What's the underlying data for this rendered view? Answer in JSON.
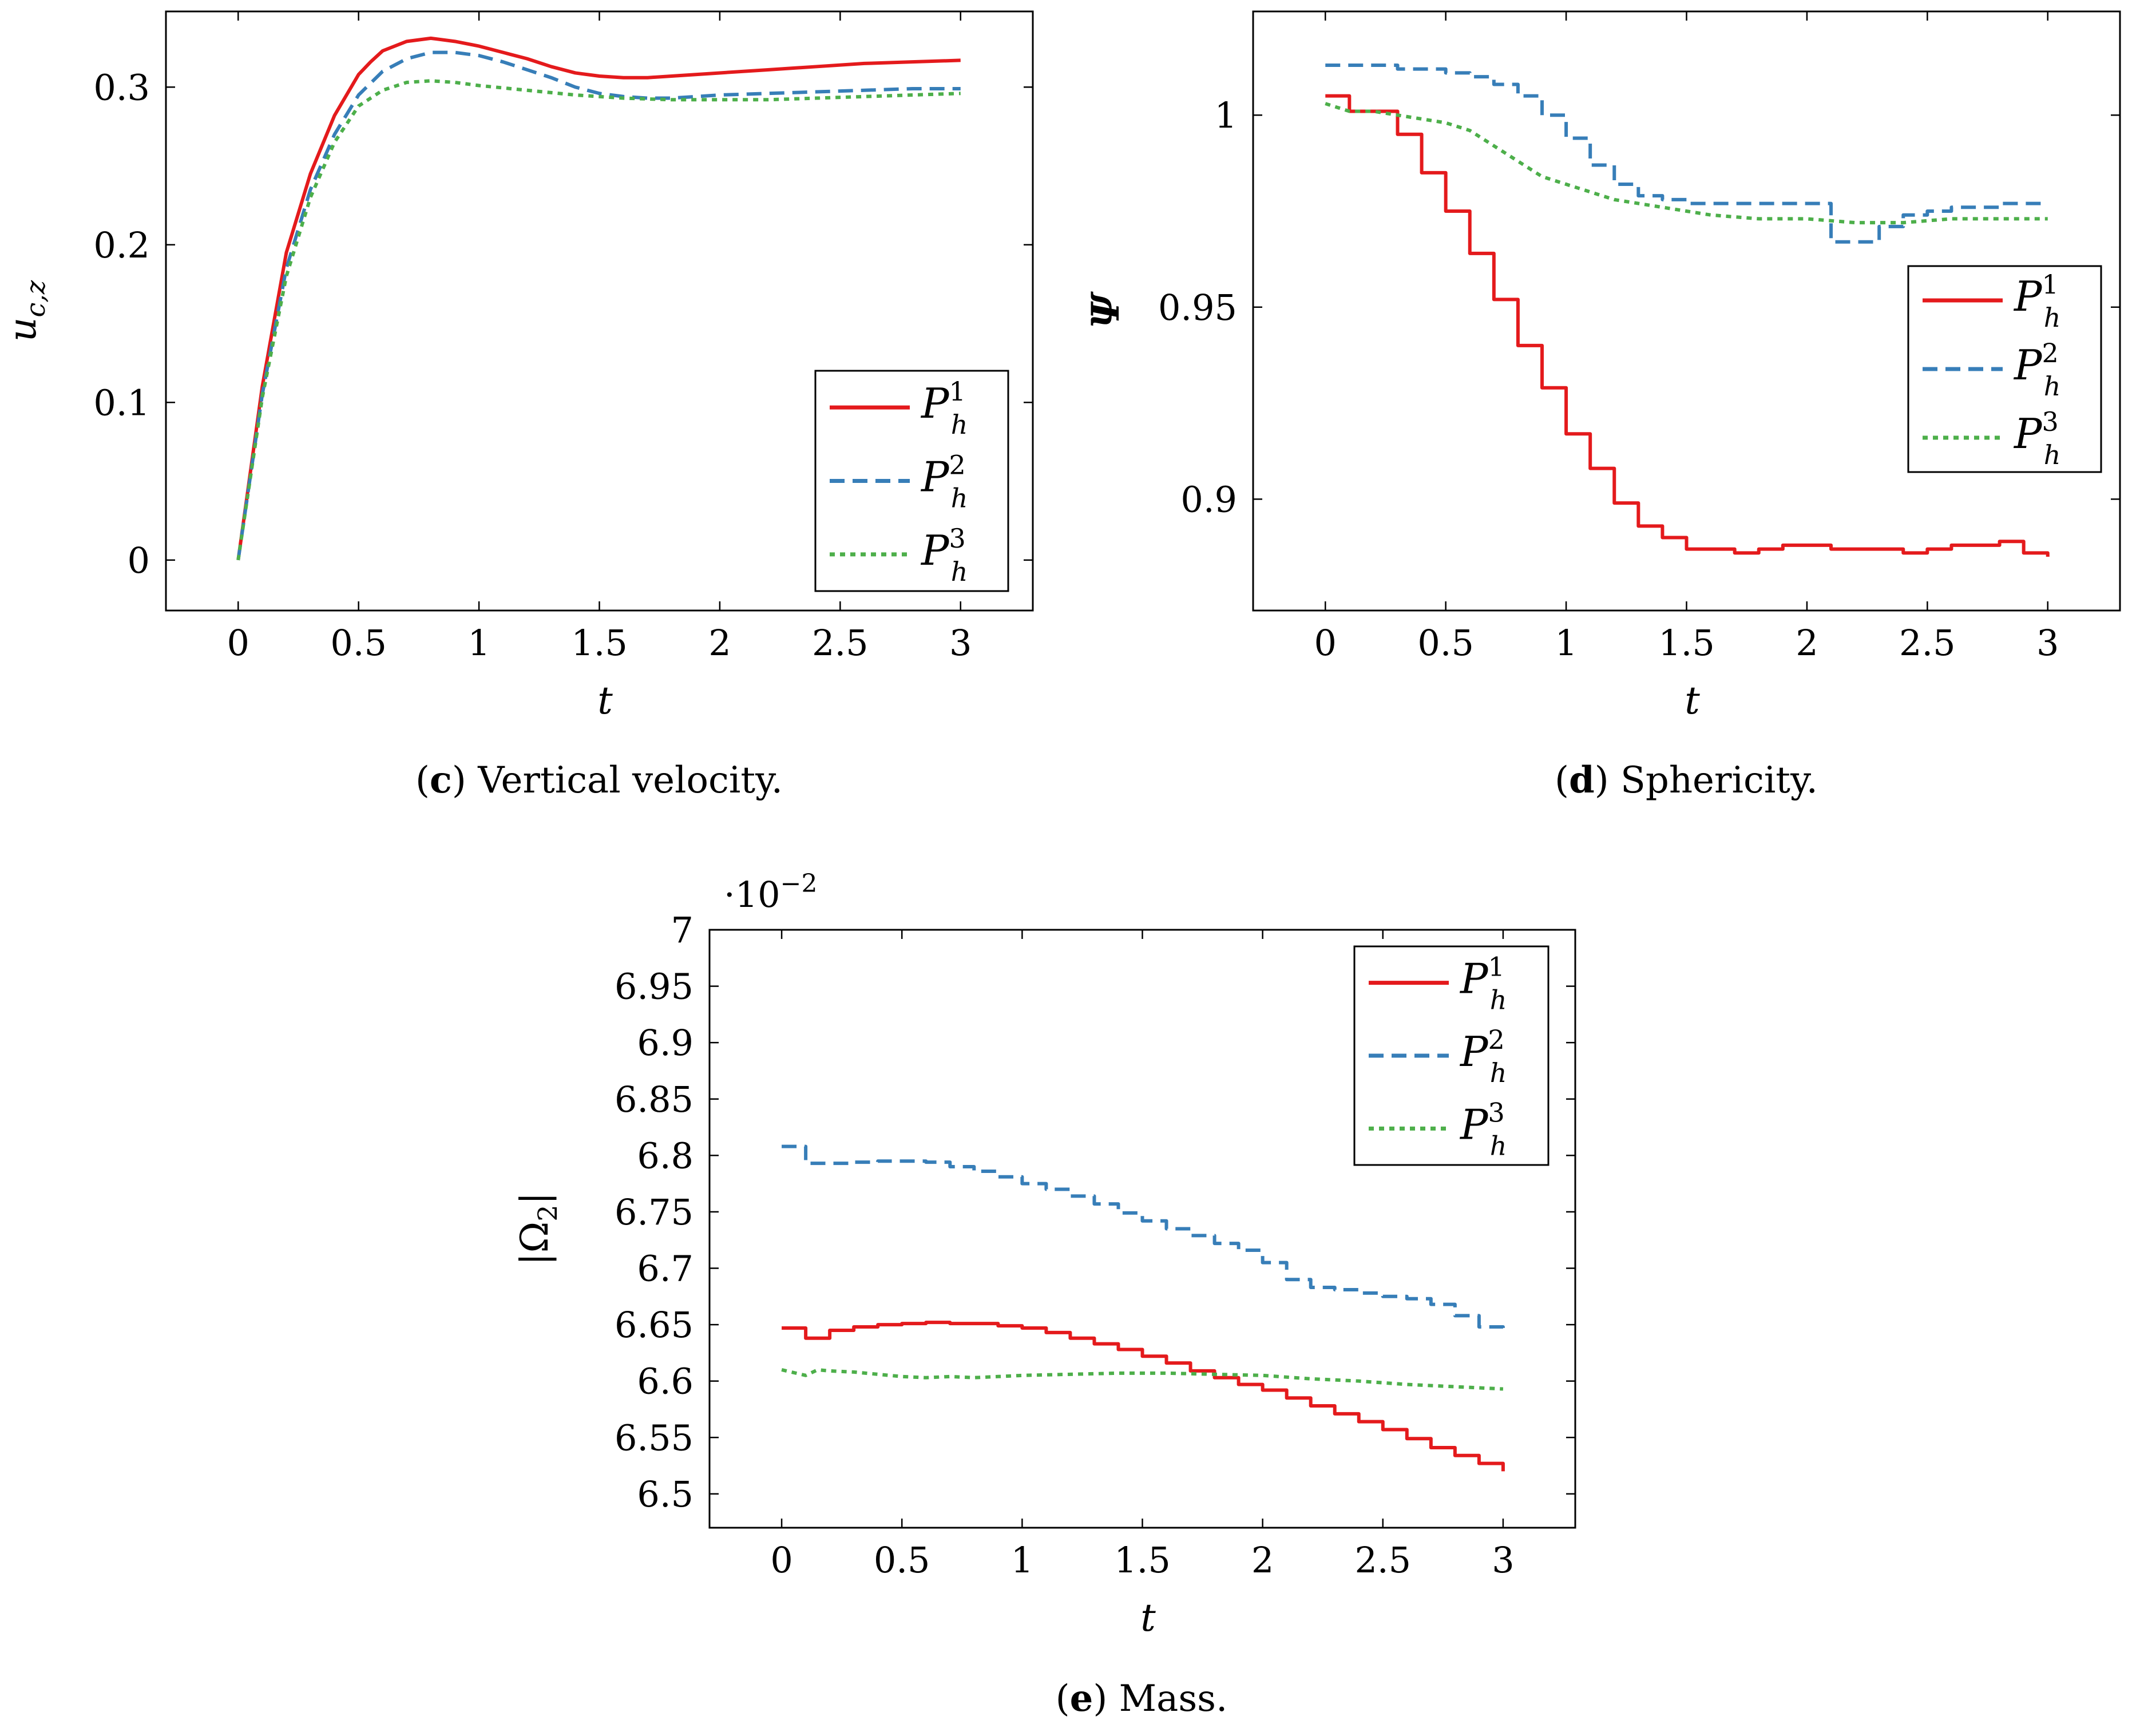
{
  "chart_data": [
    {
      "id": "c",
      "type": "line",
      "caption_letter": "c",
      "caption_text": " Vertical velocity.",
      "xlabel": "t",
      "ylabel": "u_{c,z}",
      "ylabel_main": "u",
      "ylabel_sub": "c,z",
      "xlim": [
        -0.3,
        3.3
      ],
      "ylim": [
        -0.032,
        0.348
      ],
      "xticks": [
        0,
        0.5,
        1,
        1.5,
        2,
        2.5,
        3
      ],
      "xtick_labels": [
        "0",
        "0.5",
        "1",
        "1.5",
        "2",
        "2.5",
        "3"
      ],
      "yticks": [
        0,
        0.1,
        0.2,
        0.3
      ],
      "ytick_labels": [
        "0",
        "0.1",
        "0.2",
        "0.3"
      ],
      "legend_position": "bottom-right",
      "grid": false,
      "series": [
        {
          "name": "P_h^1",
          "color": "#e41a1c",
          "dash": "solid",
          "step": false,
          "x": [
            0,
            0.1,
            0.2,
            0.3,
            0.4,
            0.5,
            0.55,
            0.6,
            0.7,
            0.8,
            0.9,
            1.0,
            1.1,
            1.2,
            1.3,
            1.4,
            1.5,
            1.6,
            1.7,
            1.8,
            1.9,
            2.0,
            2.2,
            2.4,
            2.6,
            2.8,
            3.0
          ],
          "y": [
            0.0,
            0.11,
            0.195,
            0.245,
            0.282,
            0.308,
            0.316,
            0.323,
            0.329,
            0.331,
            0.329,
            0.326,
            0.322,
            0.318,
            0.313,
            0.309,
            0.307,
            0.306,
            0.306,
            0.307,
            0.308,
            0.309,
            0.311,
            0.313,
            0.315,
            0.316,
            0.317
          ]
        },
        {
          "name": "P_h^2",
          "color": "#377eb8",
          "dash": "dashed",
          "step": false,
          "x": [
            0,
            0.1,
            0.2,
            0.3,
            0.4,
            0.5,
            0.6,
            0.7,
            0.8,
            0.9,
            1.0,
            1.1,
            1.2,
            1.3,
            1.4,
            1.5,
            1.6,
            1.7,
            1.8,
            1.9,
            2.0,
            2.2,
            2.4,
            2.6,
            2.8,
            3.0
          ],
          "y": [
            0.0,
            0.105,
            0.185,
            0.235,
            0.27,
            0.295,
            0.31,
            0.318,
            0.322,
            0.322,
            0.32,
            0.316,
            0.311,
            0.306,
            0.3,
            0.296,
            0.294,
            0.293,
            0.293,
            0.294,
            0.295,
            0.296,
            0.297,
            0.298,
            0.299,
            0.299
          ]
        },
        {
          "name": "P_h^3",
          "color": "#4daf4a",
          "dash": "dotted",
          "step": false,
          "x": [
            0,
            0.1,
            0.2,
            0.3,
            0.4,
            0.5,
            0.6,
            0.7,
            0.8,
            0.9,
            1.0,
            1.2,
            1.4,
            1.6,
            1.8,
            2.0,
            2.2,
            2.4,
            2.6,
            2.8,
            3.0
          ],
          "y": [
            0.0,
            0.103,
            0.18,
            0.23,
            0.265,
            0.288,
            0.298,
            0.303,
            0.304,
            0.303,
            0.301,
            0.298,
            0.295,
            0.293,
            0.292,
            0.292,
            0.292,
            0.293,
            0.294,
            0.295,
            0.296
          ]
        }
      ]
    },
    {
      "id": "d",
      "type": "line",
      "caption_letter": "d",
      "caption_text": " Sphericity.",
      "xlabel": "t",
      "ylabel": "Ψ",
      "xlim": [
        -0.3,
        3.3
      ],
      "ylim": [
        0.871,
        1.027
      ],
      "xticks": [
        0,
        0.5,
        1,
        1.5,
        2,
        2.5,
        3
      ],
      "xtick_labels": [
        "0",
        "0.5",
        "1",
        "1.5",
        "2",
        "2.5",
        "3"
      ],
      "yticks": [
        0.9,
        0.95,
        1
      ],
      "ytick_labels": [
        "0.9",
        "0.95",
        "1"
      ],
      "legend_position": "right",
      "grid": false,
      "series": [
        {
          "name": "P_h^1",
          "color": "#e41a1c",
          "dash": "solid",
          "step": true,
          "x": [
            0,
            0.1,
            0.2,
            0.3,
            0.4,
            0.5,
            0.6,
            0.7,
            0.8,
            0.9,
            1.0,
            1.1,
            1.2,
            1.3,
            1.4,
            1.5,
            1.6,
            1.7,
            1.8,
            1.9,
            2.0,
            2.1,
            2.2,
            2.3,
            2.4,
            2.5,
            2.6,
            2.7,
            2.8,
            2.9,
            3.0
          ],
          "y": [
            1.005,
            1.001,
            1.001,
            0.995,
            0.985,
            0.975,
            0.964,
            0.952,
            0.94,
            0.929,
            0.917,
            0.908,
            0.899,
            0.893,
            0.89,
            0.887,
            0.887,
            0.886,
            0.887,
            0.888,
            0.888,
            0.887,
            0.887,
            0.887,
            0.886,
            0.887,
            0.888,
            0.888,
            0.889,
            0.886,
            0.885
          ]
        },
        {
          "name": "P_h^2",
          "color": "#377eb8",
          "dash": "dashed",
          "step": true,
          "x": [
            0,
            0.1,
            0.2,
            0.3,
            0.4,
            0.5,
            0.6,
            0.7,
            0.8,
            0.9,
            1.0,
            1.1,
            1.2,
            1.3,
            1.4,
            1.5,
            1.6,
            1.7,
            1.8,
            1.9,
            2.0,
            2.1,
            2.2,
            2.3,
            2.4,
            2.5,
            2.6,
            2.7,
            2.8,
            2.9,
            3.0
          ],
          "y": [
            1.013,
            1.013,
            1.013,
            1.012,
            1.012,
            1.011,
            1.01,
            1.008,
            1.005,
            1.0,
            0.994,
            0.987,
            0.982,
            0.979,
            0.978,
            0.977,
            0.977,
            0.977,
            0.977,
            0.977,
            0.977,
            0.967,
            0.967,
            0.971,
            0.974,
            0.975,
            0.976,
            0.976,
            0.977,
            0.977,
            0.977
          ]
        },
        {
          "name": "P_h^3",
          "color": "#4daf4a",
          "dash": "dotted",
          "step": false,
          "x": [
            0,
            0.1,
            0.2,
            0.3,
            0.4,
            0.5,
            0.6,
            0.7,
            0.8,
            0.9,
            1.0,
            1.1,
            1.2,
            1.3,
            1.4,
            1.6,
            1.8,
            2.0,
            2.2,
            2.4,
            2.6,
            2.8,
            3.0
          ],
          "y": [
            1.003,
            1.001,
            1.001,
            1.0,
            0.999,
            0.998,
            0.996,
            0.992,
            0.988,
            0.984,
            0.982,
            0.98,
            0.978,
            0.977,
            0.976,
            0.974,
            0.973,
            0.973,
            0.972,
            0.972,
            0.973,
            0.973,
            0.973
          ]
        }
      ]
    },
    {
      "id": "e",
      "type": "line",
      "caption_letter": "e",
      "caption_text": " Mass.",
      "xlabel": "t",
      "ylabel": "|Ω_2|",
      "ylabel_main": "|Ω",
      "ylabel_sub": "2",
      "ylabel_end": "|",
      "scale_label": "·10",
      "scale_exp": "−2",
      "xlim": [
        -0.3,
        3.3
      ],
      "ylim": [
        6.47,
        7.0
      ],
      "xticks": [
        0,
        0.5,
        1,
        1.5,
        2,
        2.5,
        3
      ],
      "xtick_labels": [
        "0",
        "0.5",
        "1",
        "1.5",
        "2",
        "2.5",
        "3"
      ],
      "yticks": [
        6.5,
        6.55,
        6.6,
        6.65,
        6.7,
        6.75,
        6.8,
        6.85,
        6.9,
        6.95,
        7.0
      ],
      "ytick_labels": [
        "6.5",
        "6.55",
        "6.6",
        "6.65",
        "6.7",
        "6.75",
        "6.8",
        "6.85",
        "6.9",
        "6.95",
        "7"
      ],
      "legend_position": "top-right",
      "grid": false,
      "series": [
        {
          "name": "P_h^1",
          "color": "#e41a1c",
          "dash": "solid",
          "step": true,
          "x": [
            0,
            0.1,
            0.2,
            0.3,
            0.4,
            0.5,
            0.6,
            0.7,
            0.8,
            0.9,
            1.0,
            1.1,
            1.2,
            1.3,
            1.4,
            1.5,
            1.6,
            1.7,
            1.8,
            1.9,
            2.0,
            2.1,
            2.2,
            2.3,
            2.4,
            2.5,
            2.6,
            2.7,
            2.8,
            2.9,
            3.0
          ],
          "y": [
            6.647,
            6.638,
            6.645,
            6.648,
            6.65,
            6.651,
            6.652,
            6.651,
            6.651,
            6.649,
            6.647,
            6.643,
            6.638,
            6.633,
            6.628,
            6.622,
            6.616,
            6.609,
            6.603,
            6.597,
            6.592,
            6.585,
            6.578,
            6.571,
            6.564,
            6.557,
            6.549,
            6.541,
            6.534,
            6.527,
            6.52
          ]
        },
        {
          "name": "P_h^2",
          "color": "#377eb8",
          "dash": "dashed",
          "step": true,
          "x": [
            0,
            0.1,
            0.2,
            0.3,
            0.4,
            0.5,
            0.6,
            0.7,
            0.8,
            0.9,
            1.0,
            1.1,
            1.2,
            1.3,
            1.4,
            1.5,
            1.6,
            1.7,
            1.8,
            1.9,
            2.0,
            2.1,
            2.2,
            2.3,
            2.4,
            2.5,
            2.6,
            2.7,
            2.8,
            2.9,
            3.0
          ],
          "y": [
            6.808,
            6.793,
            6.793,
            6.794,
            6.795,
            6.795,
            6.794,
            6.79,
            6.786,
            6.781,
            6.775,
            6.77,
            6.764,
            6.757,
            6.749,
            6.742,
            6.735,
            6.729,
            6.722,
            6.716,
            6.705,
            6.69,
            6.683,
            6.681,
            6.678,
            6.675,
            6.673,
            6.668,
            6.658,
            6.648,
            6.641
          ]
        },
        {
          "name": "P_h^3",
          "color": "#4daf4a",
          "dash": "dotted",
          "step": false,
          "x": [
            0,
            0.1,
            0.15,
            0.2,
            0.3,
            0.4,
            0.5,
            0.6,
            0.7,
            0.8,
            0.9,
            1.0,
            1.2,
            1.4,
            1.6,
            1.8,
            2.0,
            2.2,
            2.4,
            2.6,
            2.8,
            3.0
          ],
          "y": [
            6.61,
            6.605,
            6.61,
            6.609,
            6.608,
            6.606,
            6.604,
            6.603,
            6.604,
            6.603,
            6.604,
            6.605,
            6.606,
            6.607,
            6.607,
            6.606,
            6.605,
            6.602,
            6.6,
            6.597,
            6.595,
            6.593
          ]
        }
      ]
    }
  ]
}
